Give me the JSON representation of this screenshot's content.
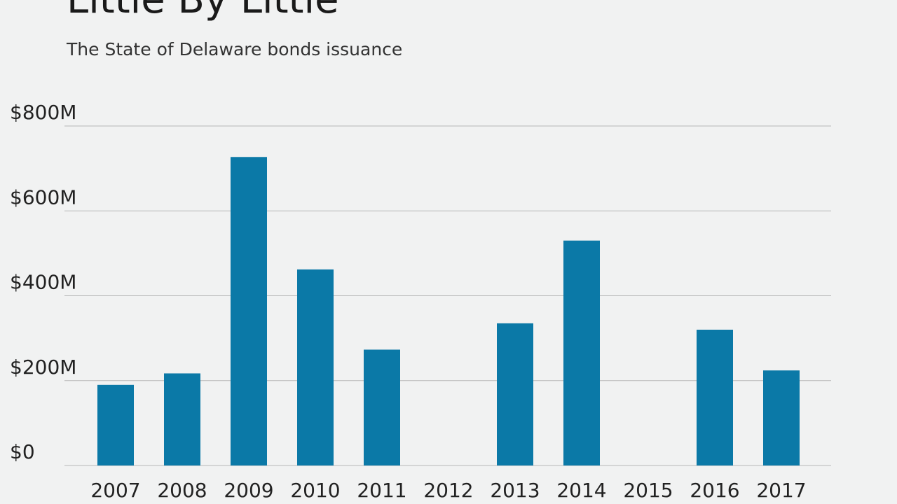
{
  "chart_data": {
    "type": "bar",
    "title": "Little By Little",
    "subtitle": "The State of Delaware bonds issuance",
    "categories": [
      "2007",
      "2008",
      "2009",
      "2010",
      "2011",
      "2012",
      "2013",
      "2014",
      "2015",
      "2016",
      "2017"
    ],
    "values": [
      190,
      217,
      727,
      462,
      273,
      0,
      335,
      530,
      0,
      320,
      224
    ],
    "y_tick_values": [
      0,
      200,
      400,
      600,
      800
    ],
    "y_tick_labels": [
      "$0",
      "$200M",
      "$400M",
      "$600M",
      "$800M"
    ],
    "ylim": [
      0,
      800
    ],
    "xlabel": "",
    "ylabel": "",
    "grid": true,
    "bar_color": "#0b79a7",
    "grid_color": "#b8b8b8"
  }
}
